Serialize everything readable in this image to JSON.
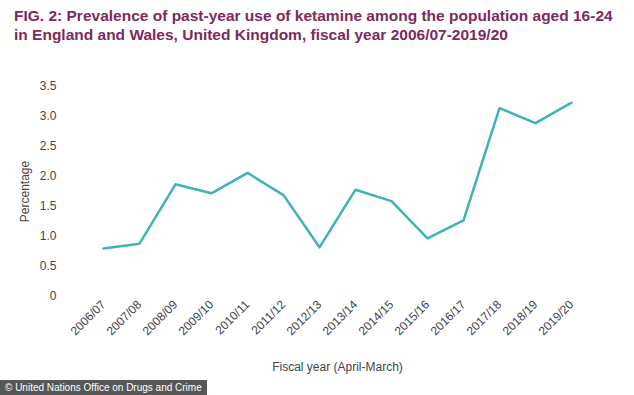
{
  "chart_data": {
    "type": "line",
    "title": "FIG. 2: Prevalence of past-year use of ketamine among the population aged 16-24 in England and Wales, United Kingdom, fiscal year 2006/07-2019/20",
    "x_label": "Fiscal year (April-March)",
    "y_label": "Percentage",
    "annotations": [
      "© United Nations Office on Drugs and Crime"
    ],
    "categories": [
      "2006/07",
      "2007/08",
      "2008/09",
      "2009/10",
      "2010/11",
      "2011/12",
      "2012/13",
      "2013/14",
      "2014/15",
      "2015/16",
      "2016/17",
      "2017/18",
      "2018/19",
      "2019/20"
    ],
    "values": [
      0.8,
      0.88,
      1.87,
      1.72,
      2.06,
      1.69,
      0.82,
      1.78,
      1.59,
      0.97,
      1.27,
      3.14,
      2.89,
      3.23
    ],
    "color": "#3db5b0",
    "ylim": [
      0,
      3.5
    ],
    "yticks": [
      0,
      0.5,
      {
        "value": 1,
        "label": "1.0"
      },
      1.5,
      {
        "value": 2,
        "label": "2.0"
      },
      2.5,
      {
        "value": 3,
        "label": "3.0"
      },
      3.5
    ],
    "grid": false
  }
}
